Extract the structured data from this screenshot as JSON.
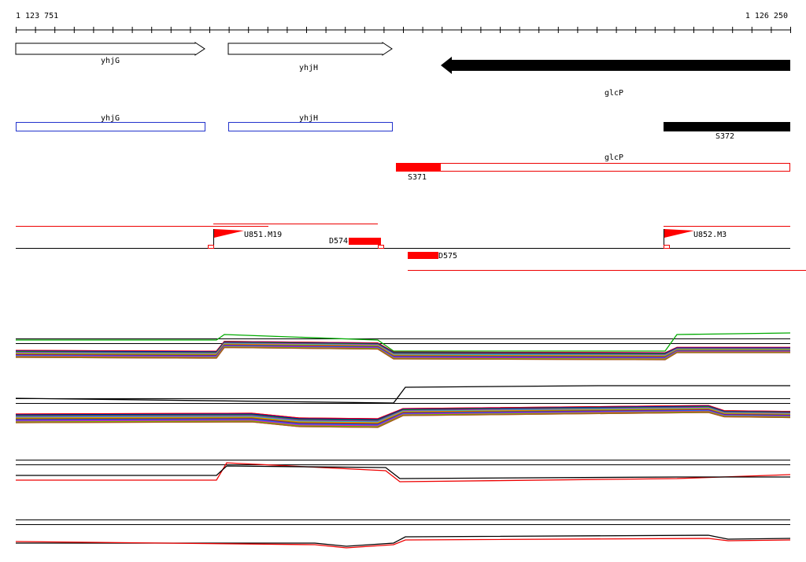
{
  "ruler": {
    "start": "1 123 751",
    "end": "1 126 250"
  },
  "genes": [
    {
      "label": "yhjG"
    },
    {
      "label": "yhjH"
    },
    {
      "label": "glcP"
    }
  ],
  "annotations": [
    {
      "label": "yhjG"
    },
    {
      "label": "yhjH"
    },
    {
      "label": "S372"
    }
  ],
  "segments": [
    {
      "label": "glcP"
    },
    {
      "label": "S371"
    }
  ],
  "features": [
    {
      "label": "U851.M19"
    },
    {
      "label": "D574"
    },
    {
      "label": "U852.M3"
    },
    {
      "label": "D575"
    }
  ]
}
